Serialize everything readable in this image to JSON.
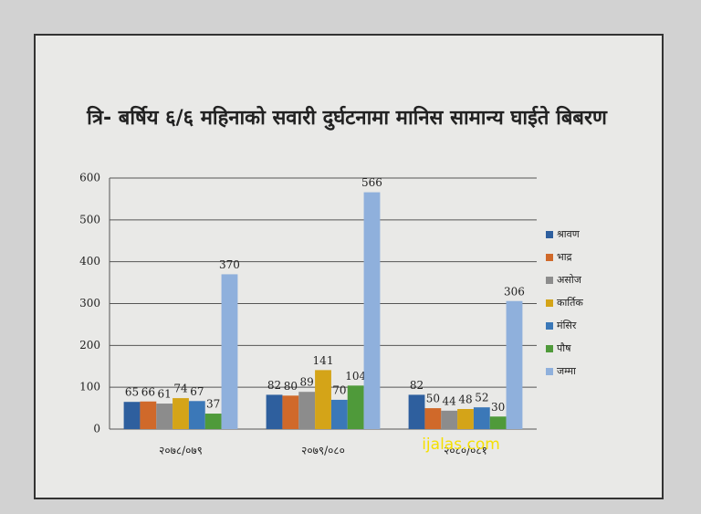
{
  "chart_data": {
    "type": "bar",
    "title": "त्रि- बर्षिय ६/६ महिनाको सवारी दुर्घटनामा मानिस सामान्य घाईते बिबरण",
    "categories": [
      "२०७८/०७९",
      "२०७९/०८०",
      "२०८०/०८१"
    ],
    "series": [
      {
        "name": "श्रावण",
        "color": "#2e5f9e",
        "values": [
          65,
          82,
          82
        ]
      },
      {
        "name": "भाद्र",
        "color": "#d0692a",
        "values": [
          66,
          80,
          50
        ]
      },
      {
        "name": "असोज",
        "color": "#8c8c8c",
        "values": [
          61,
          89,
          44
        ]
      },
      {
        "name": "कार्तिक",
        "color": "#d4a418",
        "values": [
          74,
          141,
          48
        ]
      },
      {
        "name": "मंसिर",
        "color": "#3b78b8",
        "values": [
          67,
          70,
          52
        ]
      },
      {
        "name": "पौष",
        "color": "#4f9a3a",
        "values": [
          37,
          104,
          30
        ]
      },
      {
        "name": "जम्मा",
        "color": "#8fb0dc",
        "values": [
          370,
          566,
          306
        ]
      }
    ],
    "ylim": [
      0,
      600
    ],
    "yticks": [
      0,
      100,
      200,
      300,
      400,
      500,
      600
    ],
    "grid": true,
    "legend": "right",
    "watermark": "ijalas.com"
  }
}
